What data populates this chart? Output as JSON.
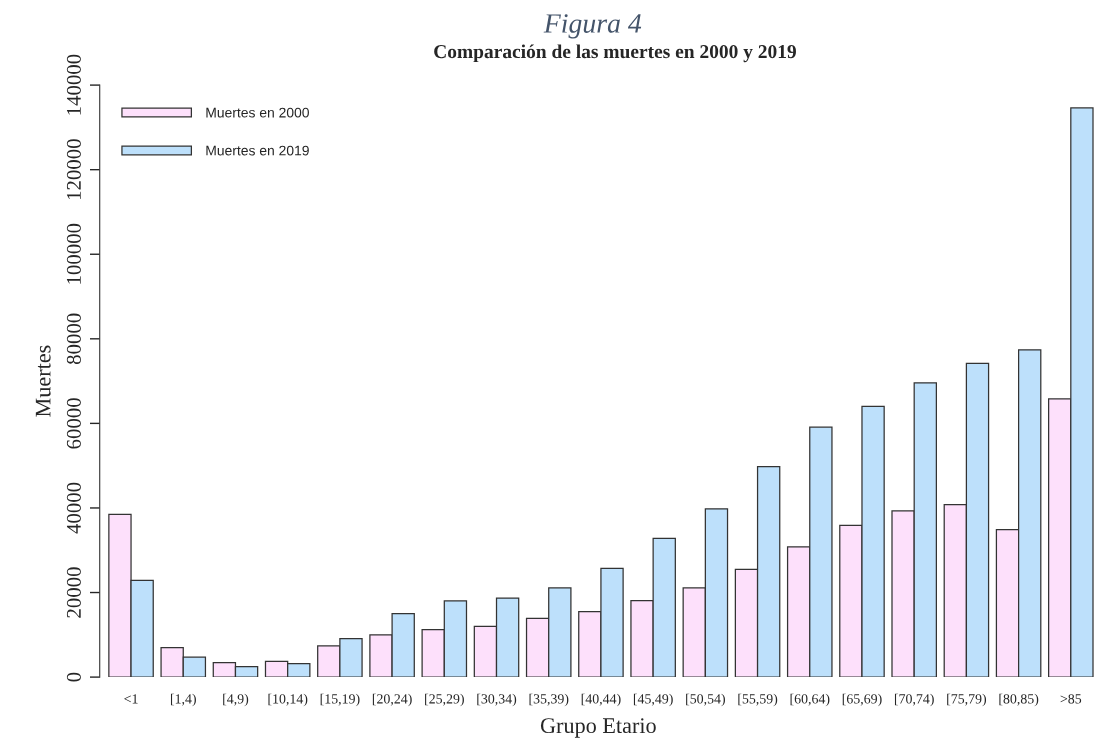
{
  "chart_data": {
    "type": "bar",
    "title": "Figura 4",
    "subtitle": "Comparación de las muertes en 2000 y 2019",
    "xlabel": "Grupo Etario",
    "ylabel": "Muertes",
    "categories": [
      "<1",
      "[1,4)",
      "[4,9)",
      "[10,14)",
      "[15,19)",
      "[20,24)",
      "[25,29)",
      "[30,34)",
      "[35,39)",
      "[40,44)",
      "[45,49)",
      "[50,54)",
      "[55,59)",
      "[60,64)",
      "[65,69)",
      "[70,74)",
      "[75,79)",
      "[80,85)",
      ">85"
    ],
    "series": [
      {
        "name": "Muertes en 2000",
        "color": "#fde0fb",
        "values": [
          38500,
          7000,
          3400,
          3700,
          7400,
          10000,
          11200,
          12000,
          13900,
          15500,
          18100,
          21100,
          25500,
          30800,
          35900,
          39300,
          40800,
          34900,
          65800
        ]
      },
      {
        "name": "Muertes en 2019",
        "color": "#bde0fb",
        "values": [
          22900,
          4700,
          2500,
          3200,
          9100,
          15000,
          18000,
          18700,
          21100,
          25700,
          32800,
          39800,
          49800,
          59100,
          64000,
          69600,
          74200,
          77400,
          134600
        ]
      }
    ],
    "ylim": [
      0,
      140000
    ],
    "yticks": [
      0,
      20000,
      40000,
      60000,
      80000,
      100000,
      120000,
      140000
    ],
    "grid": false,
    "legend": "top left"
  }
}
